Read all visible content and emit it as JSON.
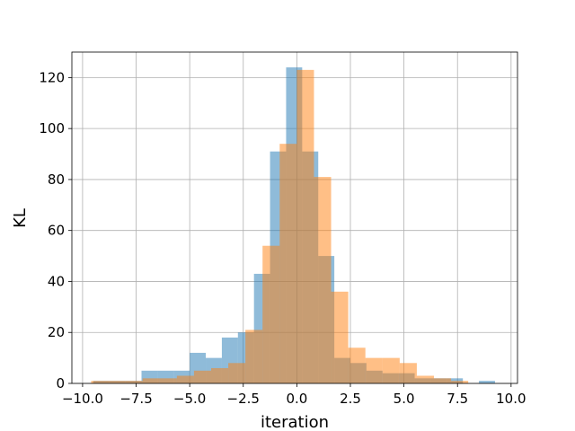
{
  "chart_data": {
    "type": "bar",
    "xlabel": "iteration",
    "ylabel": "KL",
    "xlim": [
      -10.5,
      10.3
    ],
    "ylim": [
      0,
      130
    ],
    "x_ticks": [
      -10.0,
      -7.5,
      -5.0,
      -2.5,
      0.0,
      2.5,
      5.0,
      7.5,
      10.0
    ],
    "x_tick_labels": [
      "−10.0",
      "−7.5",
      "−5.0",
      "−2.5",
      "0.0",
      "2.5",
      "5.0",
      "7.5",
      "10.0"
    ],
    "y_ticks": [
      0,
      20,
      40,
      60,
      80,
      100,
      120
    ],
    "y_tick_labels": [
      "0",
      "20",
      "40",
      "60",
      "80",
      "100",
      "120"
    ],
    "grid": true,
    "legend": "none",
    "series": [
      {
        "color": "#1f77b4",
        "alpha": 0.5,
        "bins": [
          [
            -9.5,
            -8.75,
            1
          ],
          [
            -8.75,
            -8.0,
            1
          ],
          [
            -8.0,
            -7.25,
            1
          ],
          [
            -7.25,
            -6.5,
            5
          ],
          [
            -6.5,
            -5.75,
            5
          ],
          [
            -5.75,
            -5.0,
            5
          ],
          [
            -5.0,
            -4.25,
            12
          ],
          [
            -4.25,
            -3.5,
            10
          ],
          [
            -3.5,
            -2.75,
            18
          ],
          [
            -2.75,
            -2.0,
            20
          ],
          [
            -2.0,
            -1.25,
            43
          ],
          [
            -1.25,
            -0.5,
            91
          ],
          [
            -0.5,
            0.25,
            124
          ],
          [
            0.25,
            1.0,
            91
          ],
          [
            1.0,
            1.75,
            50
          ],
          [
            1.75,
            2.5,
            10
          ],
          [
            2.5,
            3.25,
            8
          ],
          [
            3.25,
            4.0,
            5
          ],
          [
            4.0,
            4.75,
            4
          ],
          [
            4.75,
            5.5,
            4
          ],
          [
            5.5,
            6.25,
            2
          ],
          [
            6.25,
            7.0,
            2
          ],
          [
            7.0,
            7.75,
            2
          ],
          [
            7.75,
            8.5,
            0
          ],
          [
            8.5,
            9.25,
            1
          ]
        ]
      },
      {
        "color": "#ff7f0e",
        "alpha": 0.5,
        "bins": [
          [
            -9.6,
            -8.8,
            1
          ],
          [
            -8.8,
            -8.0,
            1
          ],
          [
            -8.0,
            -7.2,
            1
          ],
          [
            -7.2,
            -6.4,
            2
          ],
          [
            -6.4,
            -5.6,
            2
          ],
          [
            -5.6,
            -4.8,
            3
          ],
          [
            -4.8,
            -4.0,
            5
          ],
          [
            -4.0,
            -3.2,
            6
          ],
          [
            -3.2,
            -2.4,
            8
          ],
          [
            -2.4,
            -1.6,
            21
          ],
          [
            -1.6,
            -0.8,
            54
          ],
          [
            -0.8,
            0.0,
            94
          ],
          [
            0.0,
            0.8,
            123
          ],
          [
            0.8,
            1.6,
            81
          ],
          [
            1.6,
            2.4,
            36
          ],
          [
            2.4,
            3.2,
            14
          ],
          [
            3.2,
            4.0,
            10
          ],
          [
            4.0,
            4.8,
            10
          ],
          [
            4.8,
            5.6,
            8
          ],
          [
            5.6,
            6.4,
            3
          ],
          [
            6.4,
            7.2,
            2
          ],
          [
            7.2,
            8.0,
            1
          ]
        ]
      }
    ]
  }
}
